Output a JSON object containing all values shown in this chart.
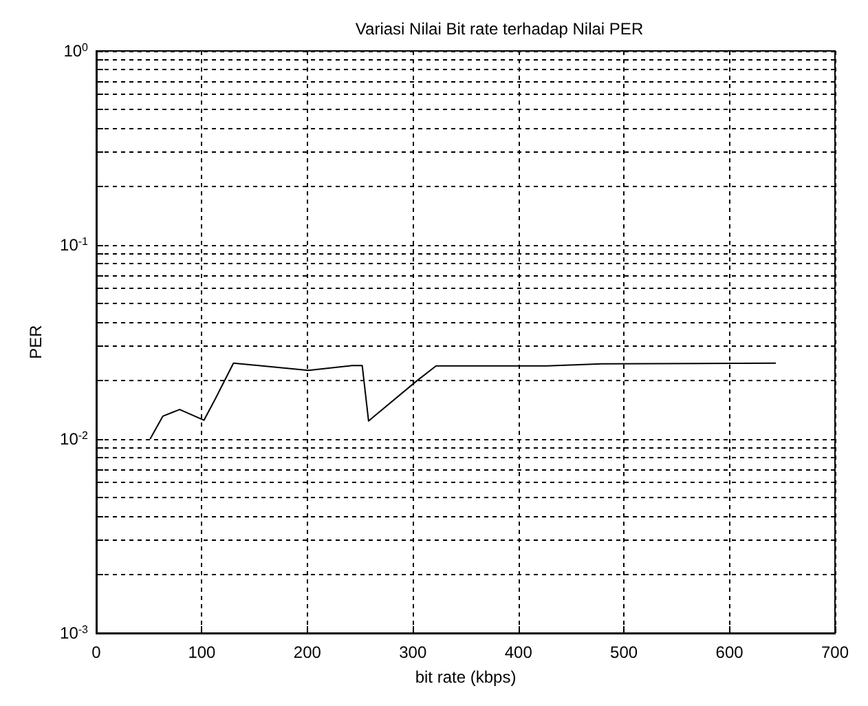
{
  "chart_data": {
    "type": "line",
    "title": "Variasi Nilai Bit rate terhadap Nilai PER",
    "xlabel": "bit rate (kbps)",
    "ylabel": "PER",
    "log": "y",
    "grid": true,
    "line_style": "solid",
    "marker": "none",
    "x": [
      51,
      63,
      79,
      102,
      113,
      130,
      154,
      201,
      242,
      252,
      258,
      304,
      322,
      427,
      479,
      644
    ],
    "series": [
      {
        "color": "#000000",
        "values": [
          0.01,
          0.0131,
          0.0142,
          0.0125,
          0.0162,
          0.0246,
          0.0239,
          0.0226,
          0.0239,
          0.0239,
          0.0124,
          0.02,
          0.0238,
          0.0238,
          0.0244,
          0.0246
        ]
      }
    ],
    "xlim": [
      0,
      700
    ],
    "xticks": [
      0,
      100,
      200,
      300,
      400,
      500,
      600,
      700
    ],
    "ylim": [
      0.001,
      1
    ],
    "yticks": [
      {
        "value": 0.001,
        "label": "10$^{-3}$"
      },
      {
        "value": 0.002,
        "label": null
      },
      {
        "value": 0.003,
        "label": null
      },
      {
        "value": 0.004,
        "label": null
      },
      {
        "value": 0.005,
        "label": null
      },
      {
        "value": 0.006,
        "label": null
      },
      {
        "value": 0.007,
        "label": null
      },
      {
        "value": 0.008,
        "label": null
      },
      {
        "value": 0.009,
        "label": null
      },
      {
        "value": 0.01,
        "label": "10$^{-2}$"
      },
      {
        "value": 0.02,
        "label": null
      },
      {
        "value": 0.03,
        "label": null
      },
      {
        "value": 0.04,
        "label": null
      },
      {
        "value": 0.05,
        "label": null
      },
      {
        "value": 0.06,
        "label": null
      },
      {
        "value": 0.07,
        "label": null
      },
      {
        "value": 0.08,
        "label": null
      },
      {
        "value": 0.09,
        "label": null
      },
      {
        "value": 0.1,
        "label": "10$^{-1}$"
      },
      {
        "value": 0.2,
        "label": null
      },
      {
        "value": 0.3,
        "label": null
      },
      {
        "value": 0.4,
        "label": null
      },
      {
        "value": 0.5,
        "label": null
      },
      {
        "value": 0.6,
        "label": null
      },
      {
        "value": 0.7,
        "label": null
      },
      {
        "value": 0.8,
        "label": null
      },
      {
        "value": 0.9,
        "label": null
      },
      {
        "value": 1,
        "label": "10$^{0}$"
      }
    ]
  }
}
